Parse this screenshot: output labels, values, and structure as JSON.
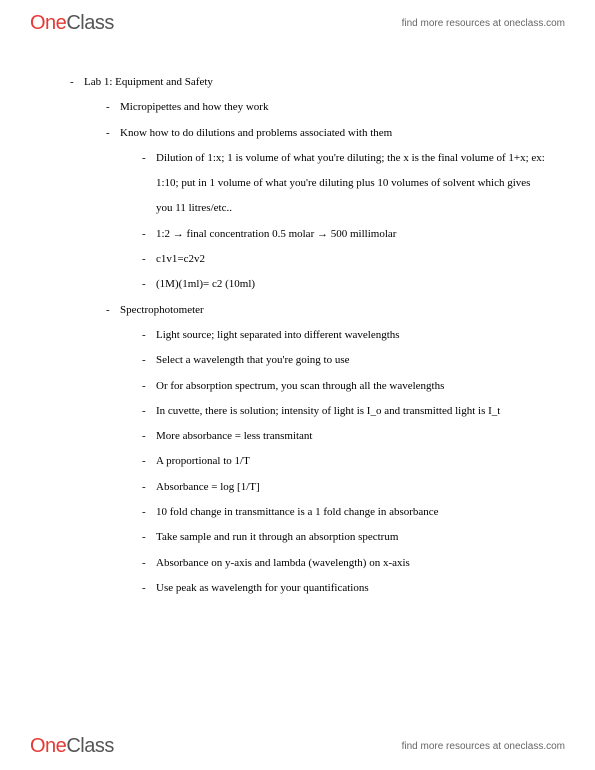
{
  "brand": {
    "part1": "One",
    "part2": "Class"
  },
  "tagline": "find more resources at oneclass.com",
  "bullet": "-",
  "lines": {
    "a": "Lab 1: Equipment and Safety",
    "b": "Micropipettes and how they work",
    "c": "Know how to do dilutions and problems associated with them",
    "d": "Dilution of 1:x; 1 is volume of what you're diluting; the x is the final volume of 1+x; ex: 1:10; put in 1 volume of what you're diluting plus 10 volumes of solvent which gives you 11 litres/etc..",
    "e": "1:2 → final concentration 0.5 molar → 500 millimolar",
    "f": "c1v1=c2v2",
    "g": "(1M)(1ml)= c2 (10ml)",
    "h": "Spectrophotometer",
    "i": "Light source; light separated into different wavelengths",
    "j": "Select a wavelength that you're going to use",
    "k": "Or for absorption spectrum, you scan through all the wavelengths",
    "l": "In cuvette, there is solution; intensity of light is I_o and transmitted light is I_t",
    "m": "More absorbance = less transmitant",
    "n": "A proportional to 1/T",
    "o": "Absorbance = log [1/T]",
    "p": "10 fold change in transmittance is a 1 fold change in absorbance",
    "q": "Take sample and run it through an absorption spectrum",
    "r": "Absorbance on y-axis and lambda (wavelength) on x-axis",
    "s": "Use peak as wavelength for your quantifications"
  }
}
